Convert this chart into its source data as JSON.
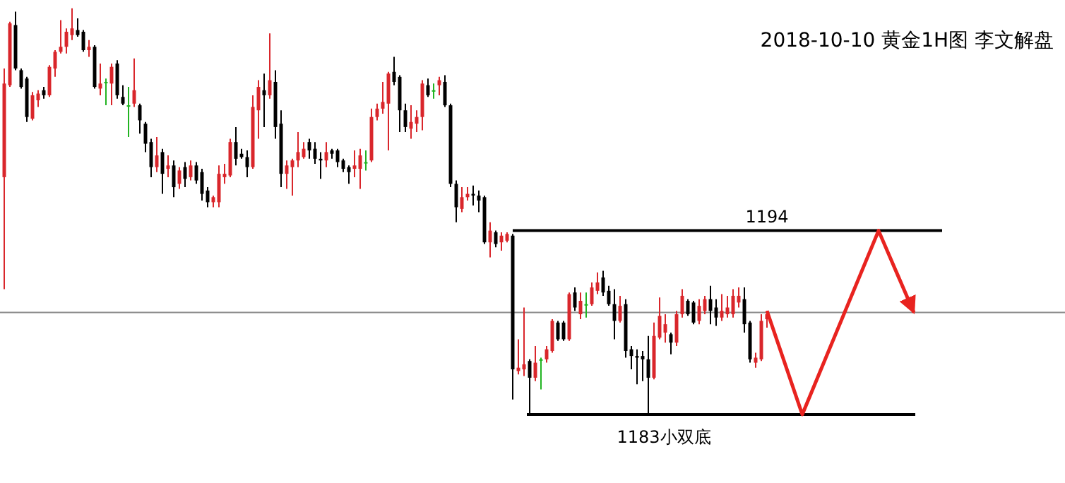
{
  "chart_data": {
    "type": "candlestick",
    "title": "2018-10-10 黄金1H图 李文解盘",
    "categories": [
      null,
      null,
      null,
      null,
      null,
      null,
      null,
      null,
      null,
      null,
      null,
      null,
      null,
      null,
      null,
      null,
      null,
      null,
      null,
      null,
      null,
      null,
      null,
      null,
      null,
      null,
      null,
      null,
      null,
      null,
      null,
      null,
      null,
      null,
      null,
      null,
      null,
      null,
      null,
      null,
      null,
      null,
      null,
      null,
      null,
      null,
      null,
      null,
      null,
      null,
      null,
      null,
      null,
      null,
      null,
      null,
      null,
      null,
      null,
      null,
      null,
      null,
      null,
      null,
      null,
      null,
      null,
      null,
      null,
      null,
      null,
      null,
      null,
      null,
      null,
      null,
      null,
      null,
      null,
      null,
      null,
      null,
      null,
      null,
      null,
      null,
      null,
      null,
      null,
      null,
      null,
      null,
      null,
      null,
      null,
      null,
      null,
      null,
      null,
      null,
      null,
      null,
      null,
      null,
      null,
      null,
      null,
      null,
      null,
      null,
      null,
      null,
      null,
      null,
      null,
      null,
      null,
      null,
      null,
      null,
      null,
      null,
      null,
      null,
      null,
      null,
      null,
      null,
      null,
      null,
      null,
      null,
      null,
      null,
      null,
      null
    ],
    "ylim": [
      1178.9,
      1207.8
    ],
    "ohlc": [
      [
        1197.2,
        1203.7,
        1190.5,
        1202.8
      ],
      [
        1202.7,
        1206.5,
        1202.6,
        1206.4
      ],
      [
        1206.3,
        1207.1,
        1203.6,
        1203.7
      ],
      [
        1203.6,
        1203.7,
        1202.5,
        1202.6
      ],
      [
        1203.1,
        1203.2,
        1200.5,
        1200.8
      ],
      [
        1200.7,
        1202.3,
        1200.6,
        1202.1
      ],
      [
        1201.8,
        1202.4,
        1201.4,
        1202.2
      ],
      [
        1202.4,
        1202.6,
        1201.9,
        1202.1
      ],
      [
        1202.1,
        1203.9,
        1202.0,
        1203.8
      ],
      [
        1203.7,
        1204.8,
        1203.2,
        1204.7
      ],
      [
        1204.7,
        1206.6,
        1204.6,
        1205.0
      ],
      [
        1205.0,
        1206.1,
        1204.6,
        1205.9
      ],
      [
        1205.7,
        1207.3,
        1205.4,
        1206.1
      ],
      [
        1206.0,
        1206.7,
        1205.6,
        1205.7
      ],
      [
        1205.9,
        1206.0,
        1204.7,
        1204.8
      ],
      [
        1204.8,
        1205.4,
        1204.4,
        1205.0
      ],
      [
        1205.0,
        1205.1,
        1202.5,
        1202.6
      ],
      [
        1202.5,
        1204.0,
        1202.1,
        1202.8
      ],
      [
        1202.9,
        1203.1,
        1201.5,
        1202.9
      ],
      [
        1202.8,
        1204.0,
        1201.5,
        1203.8
      ],
      [
        1204.0,
        1204.2,
        1201.9,
        1202.1
      ],
      [
        1202.0,
        1202.7,
        1201.5,
        1201.6
      ],
      [
        1201.5,
        1202.6,
        1199.6,
        1201.5
      ],
      [
        1201.6,
        1204.3,
        1201.4,
        1202.4
      ],
      [
        1201.5,
        1201.6,
        1199.8,
        1200.6
      ],
      [
        1200.4,
        1200.5,
        1198.7,
        1199.2
      ],
      [
        1199.3,
        1199.5,
        1197.2,
        1197.8
      ],
      [
        1197.8,
        1199.6,
        1197.5,
        1198.5
      ],
      [
        1198.7,
        1198.9,
        1196.2,
        1197.4
      ],
      [
        1197.7,
        1198.5,
        1197.2,
        1197.9
      ],
      [
        1197.9,
        1198.2,
        1196.0,
        1196.6
      ],
      [
        1196.8,
        1197.8,
        1196.5,
        1197.6
      ],
      [
        1197.8,
        1198.1,
        1196.6,
        1197.1
      ],
      [
        1197.2,
        1198.2,
        1197.0,
        1197.9
      ],
      [
        1197.9,
        1198.1,
        1196.8,
        1197.0
      ],
      [
        1197.5,
        1197.7,
        1195.8,
        1196.2
      ],
      [
        1196.4,
        1196.6,
        1195.4,
        1195.7
      ],
      [
        1195.7,
        1196.1,
        1195.4,
        1196.0
      ],
      [
        1195.7,
        1197.9,
        1195.4,
        1197.4
      ],
      [
        1197.2,
        1198.0,
        1196.8,
        1197.4
      ],
      [
        1197.3,
        1199.5,
        1197.2,
        1199.3
      ],
      [
        1199.3,
        1200.2,
        1197.9,
        1198.3
      ],
      [
        1198.6,
        1198.9,
        1198.3,
        1198.4
      ],
      [
        1198.4,
        1198.8,
        1197.2,
        1197.8
      ],
      [
        1197.8,
        1202.1,
        1197.7,
        1201.4
      ],
      [
        1201.2,
        1203.0,
        1199.5,
        1202.6
      ],
      [
        1202.4,
        1203.4,
        1200.2,
        1202.1
      ],
      [
        1202.1,
        1205.8,
        1201.9,
        1203.0
      ],
      [
        1202.9,
        1203.6,
        1199.5,
        1200.2
      ],
      [
        1200.4,
        1201.2,
        1196.6,
        1197.4
      ],
      [
        1197.4,
        1198.2,
        1196.5,
        1197.9
      ],
      [
        1197.8,
        1198.3,
        1196.1,
        1198.2
      ],
      [
        1198.2,
        1199.9,
        1197.8,
        1198.7
      ],
      [
        1198.4,
        1199.3,
        1198.3,
        1198.9
      ],
      [
        1199.3,
        1199.5,
        1198.3,
        1198.8
      ],
      [
        1198.9,
        1199.3,
        1198.0,
        1198.3
      ],
      [
        1198.3,
        1198.7,
        1197.1,
        1198.2
      ],
      [
        1198.2,
        1199.3,
        1197.8,
        1198.7
      ],
      [
        1198.8,
        1198.9,
        1198.3,
        1198.6
      ],
      [
        1198.8,
        1198.9,
        1197.8,
        1198.1
      ],
      [
        1198.2,
        1198.3,
        1197.5,
        1197.7
      ],
      [
        1197.8,
        1197.9,
        1196.8,
        1197.5
      ],
      [
        1197.7,
        1198.8,
        1197.2,
        1197.9
      ],
      [
        1197.7,
        1198.9,
        1196.5,
        1198.5
      ],
      [
        1198.1,
        1198.8,
        1197.6,
        1198.1
      ],
      [
        1198.2,
        1201.3,
        1198.1,
        1200.8
      ],
      [
        1200.8,
        1201.6,
        1200.6,
        1201.3
      ],
      [
        1201.3,
        1202.9,
        1201.0,
        1201.7
      ],
      [
        1201.6,
        1203.5,
        1198.8,
        1203.4
      ],
      [
        1203.5,
        1204.4,
        1202.7,
        1202.9
      ],
      [
        1203.2,
        1203.3,
        1199.9,
        1201.2
      ],
      [
        1201.2,
        1201.6,
        1199.9,
        1200.2
      ],
      [
        1200.1,
        1201.5,
        1199.5,
        1200.5
      ],
      [
        1200.4,
        1201.2,
        1199.9,
        1200.8
      ],
      [
        1200.8,
        1203.0,
        1200.0,
        1202.8
      ],
      [
        1202.7,
        1203.1,
        1202.0,
        1202.1
      ],
      [
        1202.4,
        1202.8,
        1201.9,
        1202.4
      ],
      [
        1202.7,
        1203.2,
        1202.1,
        1203.0
      ],
      [
        1202.9,
        1203.3,
        1201.4,
        1201.5
      ],
      [
        1201.5,
        1201.6,
        1196.6,
        1196.8
      ],
      [
        1196.8,
        1197.0,
        1194.5,
        1195.4
      ],
      [
        1195.3,
        1196.6,
        1195.1,
        1196.0
      ],
      [
        1196.0,
        1196.6,
        1195.8,
        1196.2
      ],
      [
        1196.2,
        1196.7,
        1195.5,
        1196.1
      ],
      [
        1196.1,
        1196.4,
        1195.1,
        1195.8
      ],
      [
        1196.0,
        1196.1,
        1193.2,
        1193.3
      ],
      [
        1193.3,
        1194.5,
        1192.4,
        1194.0
      ],
      [
        1193.9,
        1194.0,
        1193.0,
        1193.2
      ],
      [
        1193.3,
        1193.9,
        1192.8,
        1193.7
      ],
      [
        1193.4,
        1193.9,
        1193.3,
        1193.8
      ],
      [
        1193.7,
        1193.8,
        1183.9,
        1185.7
      ],
      [
        1185.6,
        1187.5,
        1185.4,
        1185.8
      ],
      [
        1185.7,
        1189.4,
        1185.3,
        1186.0
      ],
      [
        1186.2,
        1186.3,
        1183.0,
        1185.2
      ],
      [
        1185.2,
        1187.1,
        1185.0,
        1186.1
      ],
      [
        1186.3,
        1186.4,
        1184.5,
        1186.3
      ],
      [
        1186.3,
        1187.1,
        1186.1,
        1186.9
      ],
      [
        1186.8,
        1188.7,
        1186.7,
        1188.6
      ],
      [
        1188.5,
        1188.6,
        1187.4,
        1187.5
      ],
      [
        1188.5,
        1188.6,
        1187.4,
        1187.5
      ],
      [
        1187.5,
        1190.3,
        1187.4,
        1190.2
      ],
      [
        1190.3,
        1190.6,
        1189.2,
        1189.4
      ],
      [
        1189.0,
        1190.3,
        1188.7,
        1189.8
      ],
      [
        1189.6,
        1190.3,
        1188.8,
        1189.6
      ],
      [
        1189.6,
        1190.9,
        1189.5,
        1190.6
      ],
      [
        1190.4,
        1191.5,
        1190.2,
        1190.9
      ],
      [
        1191.2,
        1191.6,
        1190.1,
        1190.3
      ],
      [
        1190.4,
        1190.7,
        1189.5,
        1189.6
      ],
      [
        1189.6,
        1190.5,
        1187.5,
        1188.6
      ],
      [
        1188.6,
        1190.1,
        1188.5,
        1189.5
      ],
      [
        1189.6,
        1189.9,
        1186.4,
        1186.8
      ],
      [
        1186.9,
        1187.1,
        1185.7,
        1186.5
      ],
      [
        1186.5,
        1186.9,
        1184.8,
        1186.4
      ],
      [
        1186.5,
        1186.8,
        1185.0,
        1186.3
      ],
      [
        1186.3,
        1187.7,
        1183.0,
        1185.2
      ],
      [
        1185.2,
        1188.5,
        1185.1,
        1187.7
      ],
      [
        1187.6,
        1190.0,
        1187.5,
        1188.9
      ],
      [
        1187.9,
        1189.0,
        1187.3,
        1188.4
      ],
      [
        1187.8,
        1187.9,
        1186.6,
        1187.3
      ],
      [
        1187.3,
        1189.2,
        1187.1,
        1189.0
      ],
      [
        1189.0,
        1190.5,
        1188.8,
        1190.1
      ],
      [
        1189.8,
        1189.9,
        1188.9,
        1189.0
      ],
      [
        1189.7,
        1189.8,
        1188.4,
        1188.5
      ],
      [
        1188.6,
        1189.9,
        1188.4,
        1189.5
      ],
      [
        1189.2,
        1190.1,
        1189.0,
        1189.9
      ],
      [
        1189.9,
        1190.7,
        1188.4,
        1189.2
      ],
      [
        1189.4,
        1189.9,
        1188.3,
        1188.8
      ],
      [
        1188.8,
        1190.2,
        1188.6,
        1189.2
      ],
      [
        1189.0,
        1190.1,
        1188.8,
        1189.4
      ],
      [
        1189.0,
        1190.5,
        1188.8,
        1190.1
      ],
      [
        1189.7,
        1190.6,
        1189.4,
        1190.1
      ],
      [
        1189.9,
        1190.6,
        1187.9,
        1188.4
      ],
      [
        1188.5,
        1188.6,
        1186.1,
        1186.3
      ],
      [
        1186.1,
        1186.7,
        1185.8,
        1186.4
      ],
      [
        1186.3,
        1189.0,
        1186.2,
        1188.6
      ],
      [
        1188.7,
        1189.2,
        1188.2,
        1189.0
      ]
    ],
    "colors": [
      "#d9262b",
      "#d9262b",
      "#000000",
      "#000000",
      "#000000",
      "#d9262b",
      "#d9262b",
      "#000000",
      "#d9262b",
      "#d9262b",
      "#d9262b",
      "#d9262b",
      "#d9262b",
      "#000000",
      "#000000",
      "#d9262b",
      "#000000",
      "#d9262b",
      "#22b422",
      "#d9262b",
      "#000000",
      "#000000",
      "#22b422",
      "#d9262b",
      "#000000",
      "#000000",
      "#000000",
      "#d9262b",
      "#000000",
      "#d9262b",
      "#000000",
      "#d9262b",
      "#000000",
      "#d9262b",
      "#000000",
      "#000000",
      "#000000",
      "#d9262b",
      "#d9262b",
      "#d9262b",
      "#d9262b",
      "#000000",
      "#000000",
      "#000000",
      "#d9262b",
      "#d9262b",
      "#000000",
      "#d9262b",
      "#000000",
      "#000000",
      "#d9262b",
      "#d9262b",
      "#d9262b",
      "#d9262b",
      "#000000",
      "#000000",
      "#000000",
      "#d9262b",
      "#000000",
      "#000000",
      "#000000",
      "#000000",
      "#d9262b",
      "#d9262b",
      "#22b422",
      "#d9262b",
      "#d9262b",
      "#d9262b",
      "#d9262b",
      "#000000",
      "#000000",
      "#000000",
      "#d9262b",
      "#d9262b",
      "#d9262b",
      "#000000",
      "#22b422",
      "#d9262b",
      "#000000",
      "#000000",
      "#000000",
      "#d9262b",
      "#d9262b",
      "#000000",
      "#000000",
      "#000000",
      "#d9262b",
      "#000000",
      "#d9262b",
      "#d9262b",
      "#000000",
      "#d9262b",
      "#d9262b",
      "#000000",
      "#d9262b",
      "#22b422",
      "#d9262b",
      "#d9262b",
      "#000000",
      "#000000",
      "#d9262b",
      "#000000",
      "#d9262b",
      "#22b422",
      "#d9262b",
      "#d9262b",
      "#000000",
      "#000000",
      "#000000",
      "#d9262b",
      "#000000",
      "#000000",
      "#000000",
      "#000000",
      "#000000",
      "#d9262b",
      "#d9262b",
      "#d9262b",
      "#000000",
      "#d9262b",
      "#d9262b",
      "#000000",
      "#000000",
      "#d9262b",
      "#d9262b",
      "#000000",
      "#000000",
      "#d9262b",
      "#d9262b",
      "#d9262b",
      "#d9262b",
      "#000000",
      "#000000",
      "#d9262b",
      "#d9262b",
      "#d9262b"
    ],
    "ref_lines": [
      {
        "axis": "y",
        "value": 1194,
        "label": "1194",
        "color": "#000000"
      },
      {
        "axis": "y",
        "value": 1183,
        "label": "1183小双底",
        "color": "#000000"
      },
      {
        "axis": "y",
        "value": 1189.1,
        "label": null,
        "color": "#8c8c8c"
      }
    ]
  }
}
